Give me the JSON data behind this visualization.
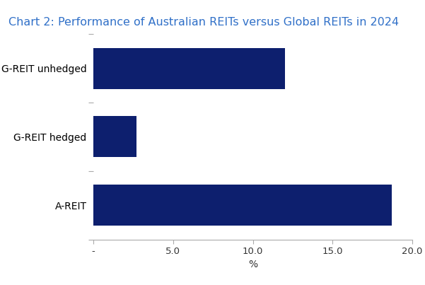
{
  "title": "Chart 2: Performance of Australian REITs versus Global REITs in 2024",
  "categories": [
    "G-REIT unhedged",
    "G-REIT hedged",
    "A-REIT"
  ],
  "values": [
    12.0,
    2.7,
    18.7
  ],
  "bar_color": "#0d1f6e",
  "xlabel": "%",
  "xlim": [
    0,
    20.0
  ],
  "xticks": [
    0,
    5.0,
    10.0,
    15.0,
    20.0
  ],
  "xticklabels": [
    "-",
    "5.0",
    "10.0",
    "15.0",
    "20.0"
  ],
  "title_color": "#3070C8",
  "title_fontsize": 11.5,
  "label_fontsize": 10,
  "tick_fontsize": 9.5,
  "background_color": "#ffffff",
  "bar_height": 0.6
}
